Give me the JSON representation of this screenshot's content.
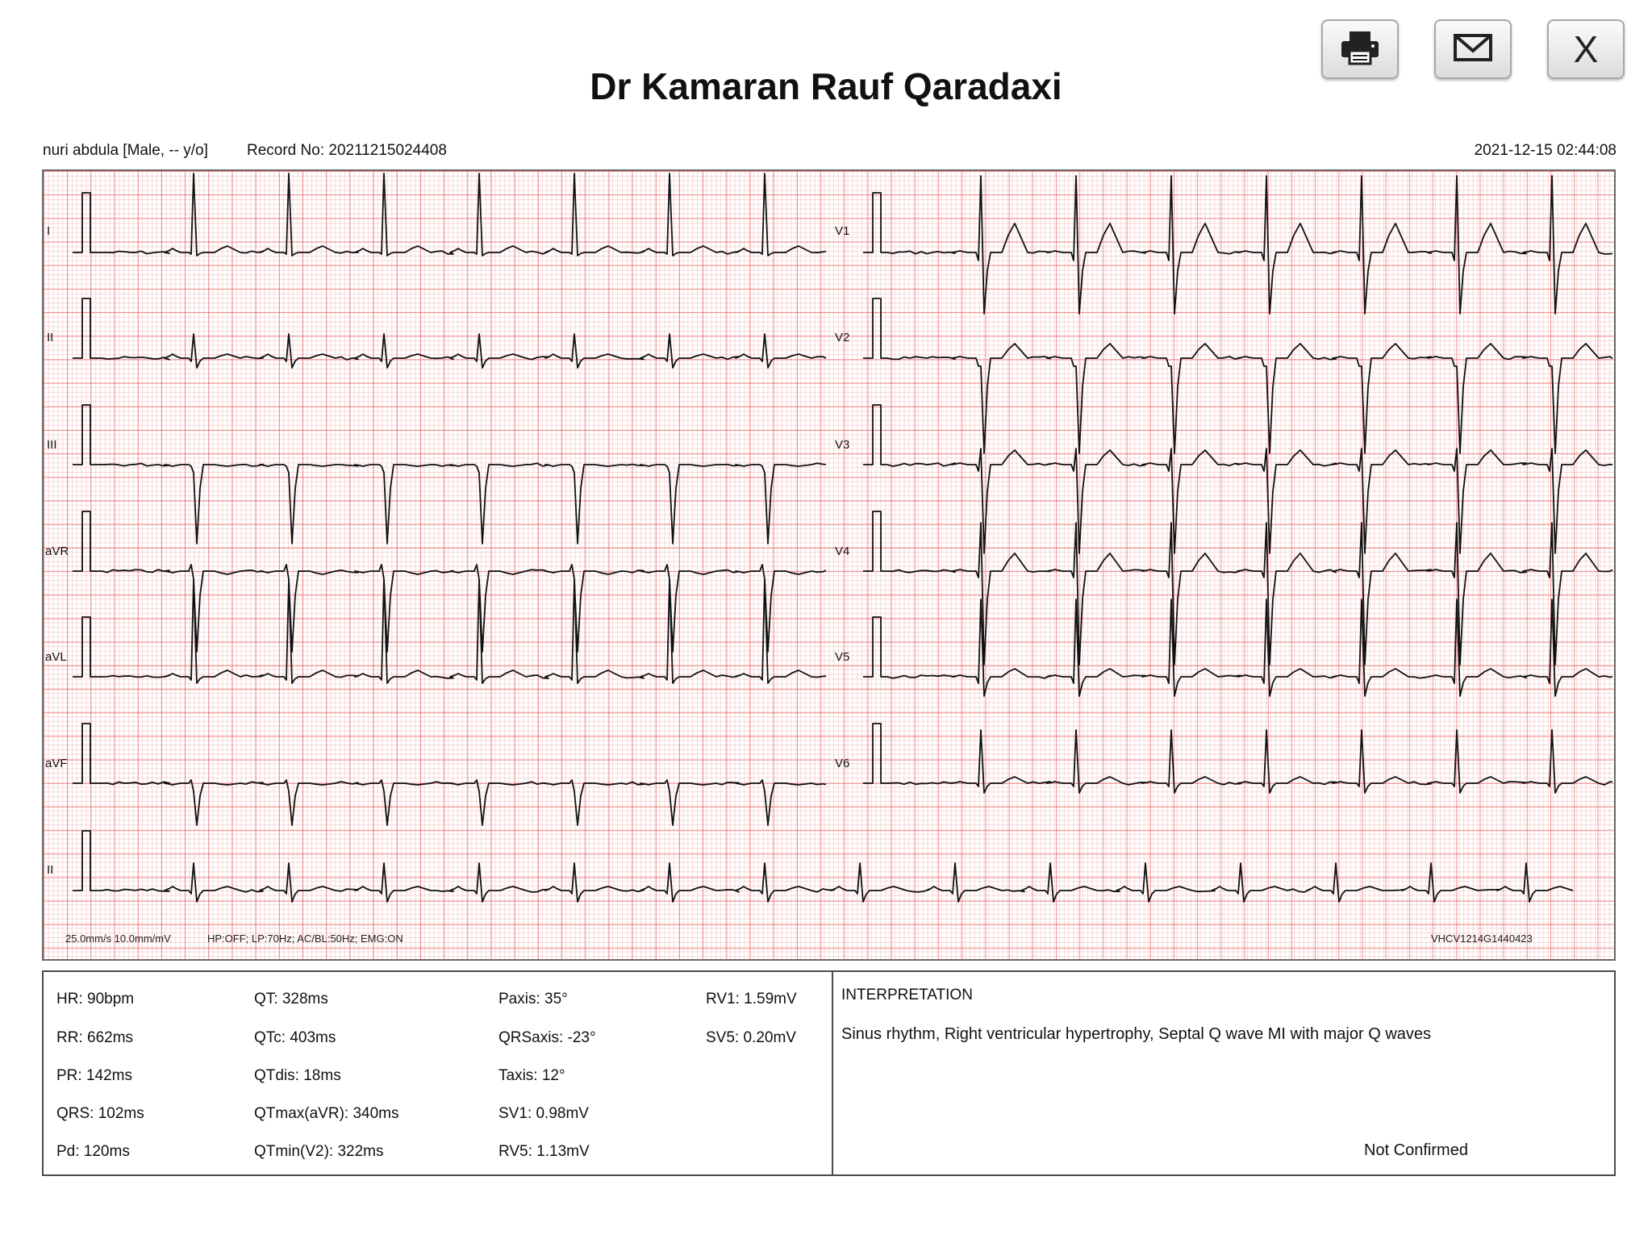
{
  "toolbar": {
    "print_icon": "printer-icon",
    "email_icon": "envelope-icon",
    "close_label": "X"
  },
  "header": {
    "title": "Dr Kamaran Rauf Qaradaxi",
    "patient": "nuri abdula [Male, -- y/o]",
    "record_no": "Record No: 20211215024408",
    "datetime": "2021-12-15 02:44:08"
  },
  "ecg": {
    "leads_left": [
      "I",
      "II",
      "III",
      "aVR",
      "aVL",
      "aVF"
    ],
    "leads_right": [
      "V1",
      "V2",
      "V3",
      "V4",
      "V5",
      "V6"
    ],
    "rhythm_lead": "II",
    "speed_gain": "25.0mm/s  10.0mm/mV",
    "filters": "HP:OFF; LP:70Hz; AC/BL:50Hz; EMG:ON",
    "device_id": "VHCV1214G1440423",
    "grid_major_color": "#e24f4f",
    "trace_color": "#111111"
  },
  "params": {
    "col1": [
      "HR: 90bpm",
      "RR: 662ms",
      "PR: 142ms",
      "QRS: 102ms",
      "Pd: 120ms"
    ],
    "col2": [
      "QT: 328ms",
      "QTc: 403ms",
      "QTdis: 18ms",
      "QTmax(aVR): 340ms",
      "QTmin(V2): 322ms"
    ],
    "col3": [
      "Paxis: 35°",
      "QRSaxis: -23°",
      "Taxis: 12°",
      "SV1: 0.98mV",
      "RV5: 1.13mV"
    ],
    "col4": [
      "RV1: 1.59mV",
      "SV5: 0.20mV"
    ]
  },
  "interpretation": {
    "heading": "INTERPRETATION",
    "text": "Sinus rhythm, Right ventricular hypertrophy, Septal Q wave MI with major Q waves",
    "status": "Not Confirmed"
  }
}
